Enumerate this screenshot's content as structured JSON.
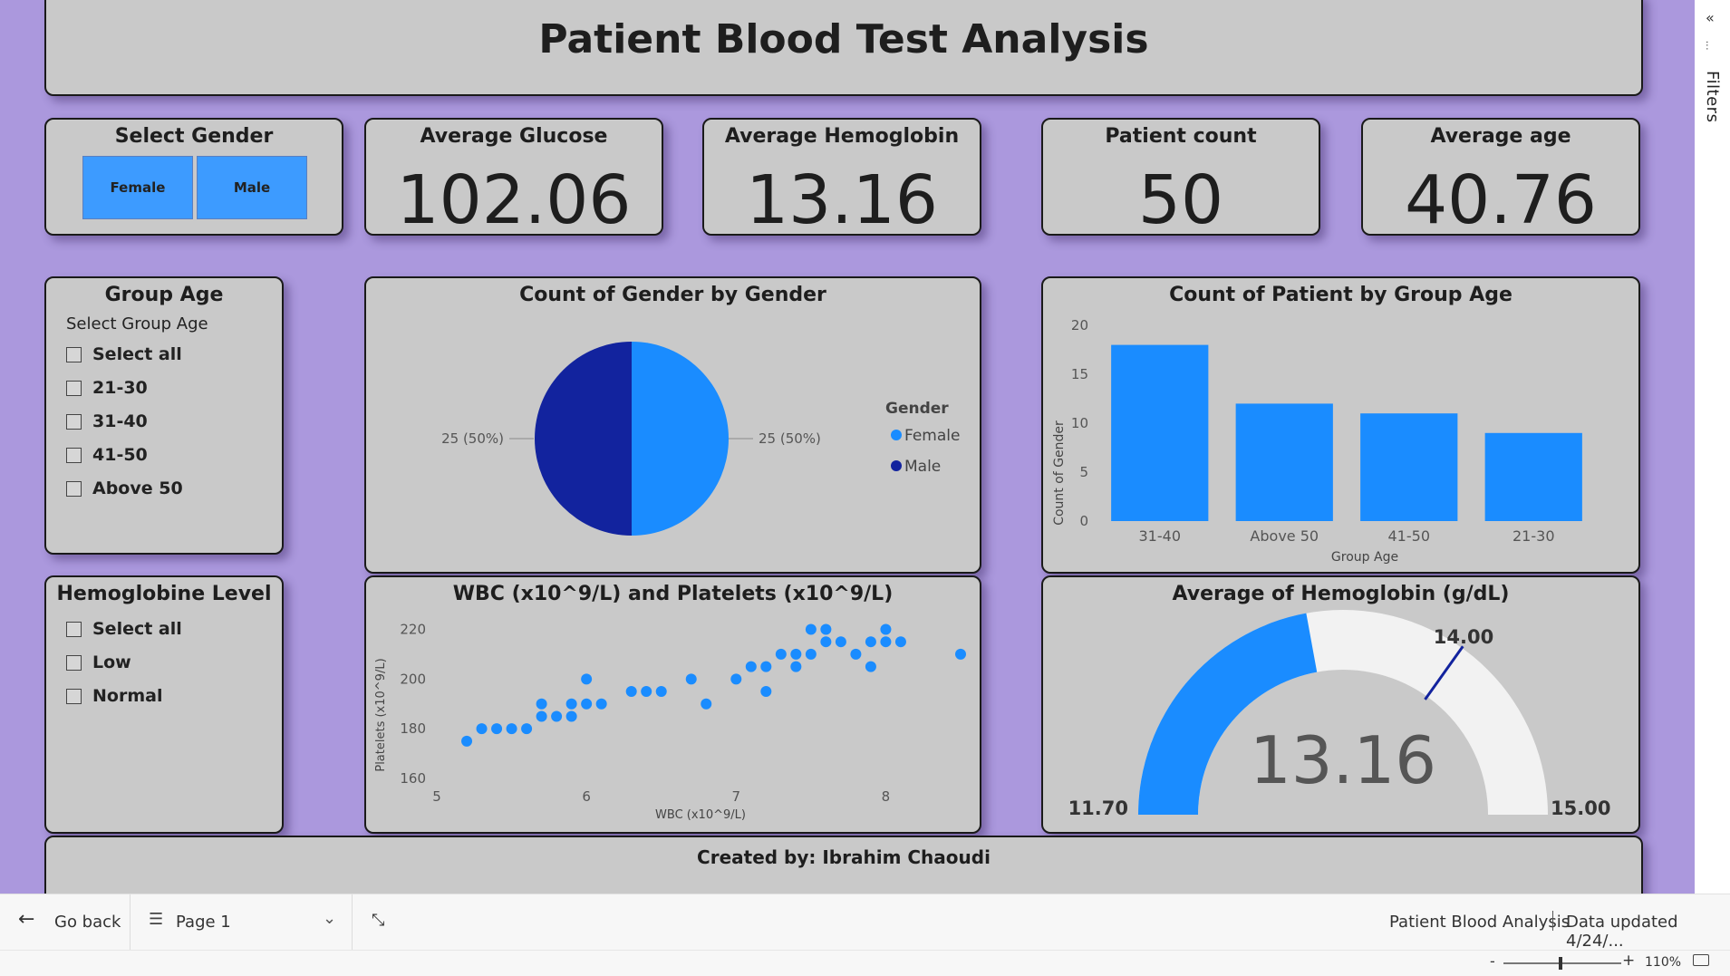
{
  "header": {
    "title": "Patient Blood Test Analysis"
  },
  "filters_rail": {
    "label": "Filters",
    "collapse_icon": "double-chevron-left-icon",
    "filter_icon": "filter-icon"
  },
  "gender_slicer": {
    "title": "Select Gender",
    "options": [
      "Female",
      "Male"
    ]
  },
  "kpis": {
    "glucose": {
      "title": "Average Glucose",
      "value": "102.06"
    },
    "hemoglobin": {
      "title": "Average Hemoglobin",
      "value": "13.16"
    },
    "patients": {
      "title": "Patient count",
      "value": "50"
    },
    "age": {
      "title": "Average age",
      "value": "40.76"
    }
  },
  "group_age_slicer": {
    "title": "Group Age",
    "subtitle": "Select Group Age",
    "options": [
      "Select all",
      "21-30",
      "31-40",
      "41-50",
      "Above 50"
    ]
  },
  "hemoglobin_slicer": {
    "title": "Hemoglobine Level",
    "options": [
      "Select all",
      "Low",
      "Normal"
    ]
  },
  "pie_chart": {
    "title": "Count of Gender by Gender",
    "legend_title": "Gender",
    "left_label": "25 (50%)",
    "right_label": "25 (50%)"
  },
  "bar_chart": {
    "title": "Count of Patient by Group Age"
  },
  "scatter_chart": {
    "title": "WBC (x10^9/L) and Platelets (x10^9/L)"
  },
  "gauge": {
    "title": "Average of Hemoglobin (g/dL)",
    "value": "13.16",
    "min_label": "11.70",
    "max_label": "15.00",
    "target_label": "14.00"
  },
  "chart_data": [
    {
      "type": "pie",
      "title": "Count of Gender by Gender",
      "categories": [
        "Female",
        "Male"
      ],
      "values": [
        25,
        25
      ],
      "colors": [
        "#1a8cff",
        "#12239e"
      ],
      "legend_title": "Gender"
    },
    {
      "type": "bar",
      "title": "Count of Patient by Group Age",
      "categories": [
        "31-40",
        "Above 50",
        "41-50",
        "21-30"
      ],
      "values": [
        18,
        12,
        11,
        9
      ],
      "xlabel": "Group Age",
      "ylabel": "Count of Gender",
      "ylim": [
        0,
        20
      ],
      "yticks": [
        "0",
        "5",
        "10",
        "15",
        "20"
      ],
      "color": "#1a8cff"
    },
    {
      "type": "scatter",
      "title": "WBC (x10^9/L) and Platelets (x10^9/L)",
      "xlabel": "WBC (x10^9/L)",
      "ylabel": "Platelets (x10^9/L)",
      "xlim": [
        5,
        8.5
      ],
      "ylim": [
        160,
        222
      ],
      "xticks": [
        "5",
        "6",
        "7",
        "8"
      ],
      "yticks": [
        "160",
        "180",
        "200",
        "220"
      ],
      "color": "#1a8cff",
      "points": [
        [
          5.2,
          175
        ],
        [
          5.3,
          180
        ],
        [
          5.4,
          180
        ],
        [
          5.5,
          180
        ],
        [
          5.6,
          180
        ],
        [
          5.7,
          185
        ],
        [
          5.7,
          190
        ],
        [
          5.8,
          185
        ],
        [
          5.9,
          185
        ],
        [
          5.9,
          190
        ],
        [
          6.0,
          190
        ],
        [
          6.0,
          200
        ],
        [
          6.1,
          190
        ],
        [
          6.3,
          195
        ],
        [
          6.4,
          195
        ],
        [
          6.5,
          195
        ],
        [
          6.7,
          200
        ],
        [
          6.8,
          190
        ],
        [
          7.0,
          200
        ],
        [
          7.1,
          205
        ],
        [
          7.2,
          205
        ],
        [
          7.2,
          195
        ],
        [
          7.3,
          210
        ],
        [
          7.4,
          210
        ],
        [
          7.4,
          205
        ],
        [
          7.5,
          210
        ],
        [
          7.5,
          220
        ],
        [
          7.6,
          215
        ],
        [
          7.6,
          220
        ],
        [
          7.7,
          215
        ],
        [
          7.8,
          210
        ],
        [
          7.9,
          215
        ],
        [
          7.9,
          205
        ],
        [
          8.0,
          220
        ],
        [
          8.0,
          215
        ],
        [
          8.1,
          215
        ],
        [
          8.5,
          210
        ]
      ]
    },
    {
      "type": "gauge",
      "title": "Average of Hemoglobin (g/dL)",
      "min": 11.7,
      "max": 15.0,
      "value": 13.16,
      "target": 14.0,
      "fill_color": "#1a8cff",
      "track_color": "#f2f2f2"
    }
  ],
  "footer": {
    "text": "Created by: Ibrahim Chaoudi"
  },
  "bottom_bar": {
    "back_label": "Go back",
    "page_label": "Page 1",
    "report_name": "Patient Blood Analysis",
    "updated": "Data updated 4/24/..."
  },
  "status_bar": {
    "zoom": "110%"
  }
}
